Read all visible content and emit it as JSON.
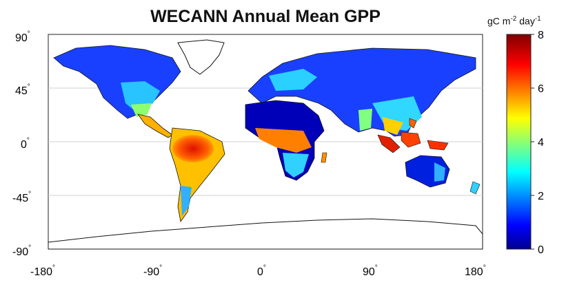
{
  "title": "WECANN Annual Mean GPP",
  "colorbar": {
    "unit_prefix": "gC m",
    "unit_exp1": "-2",
    "unit_mid": " day",
    "unit_exp2": "-1",
    "ticks": [
      "8",
      "6",
      "4",
      "2",
      "0"
    ],
    "range": [
      0,
      8
    ],
    "colors": [
      "#00008f",
      "#0000ff",
      "#0080ff",
      "#00ffff",
      "#80ff80",
      "#ffff00",
      "#ff8000",
      "#ff0000",
      "#800000"
    ]
  },
  "axes": {
    "x_ticks": [
      "-180",
      "-90",
      "0",
      "90",
      "180"
    ],
    "y_ticks": [
      "90",
      "45",
      "0",
      "-45",
      "-90"
    ],
    "degree_symbol": "°",
    "xlim": [
      -180,
      180
    ],
    "ylim": [
      -90,
      90
    ],
    "grid": "horizontal"
  }
}
